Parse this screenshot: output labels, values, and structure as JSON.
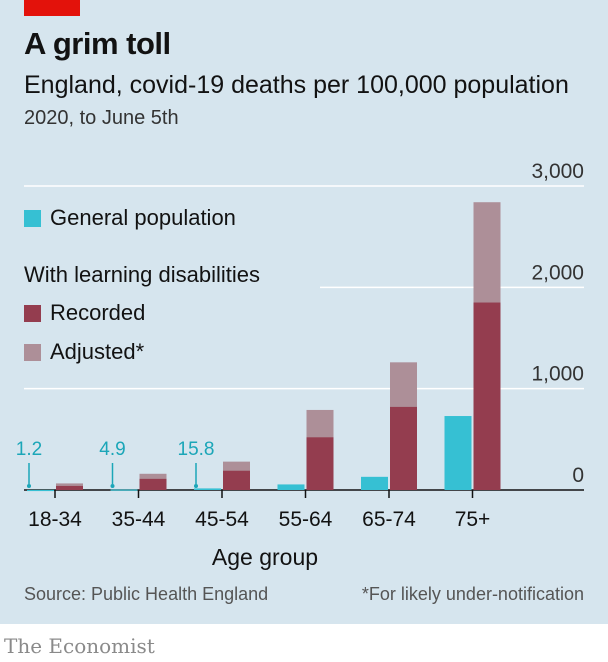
{
  "header": {
    "title": "A grim toll",
    "subtitle": "England, covid-19 deaths per 100,000 population",
    "subsubtitle": "2020, to June 5th"
  },
  "legend": {
    "general": "General population",
    "group_heading": "With learning disabilities",
    "recorded": "Recorded",
    "adjusted": "Adjusted*"
  },
  "footer": {
    "source": "Source: Public Health England",
    "footnote": "*For likely under-notification",
    "brand": "The Economist"
  },
  "colors": {
    "general": "#36c0d3",
    "recorded": "#943d4f",
    "adjusted": "#ad8f98",
    "grid": "#ffffff",
    "axis": "#121212"
  },
  "chart_data": {
    "type": "bar",
    "xlabel": "Age group",
    "ylabel": "",
    "ylim": [
      0,
      3000
    ],
    "yticks": [
      0,
      1000,
      2000,
      3000
    ],
    "ytick_labels": [
      "0",
      "1,000",
      "2,000",
      "3,000"
    ],
    "categories": [
      "18-34",
      "35-44",
      "45-54",
      "55-64",
      "65-74",
      "75+"
    ],
    "series": [
      {
        "name": "General population",
        "values": [
          1.2,
          4.9,
          15.8,
          55,
          130,
          730
        ]
      },
      {
        "name": "Recorded",
        "values": [
          40,
          110,
          190,
          520,
          820,
          1850
        ]
      },
      {
        "name": "Adjusted*",
        "values": [
          65,
          160,
          280,
          790,
          1260,
          2840
        ]
      }
    ],
    "value_labels": [
      "1.2",
      "4.9",
      "15.8"
    ],
    "grid": true
  }
}
